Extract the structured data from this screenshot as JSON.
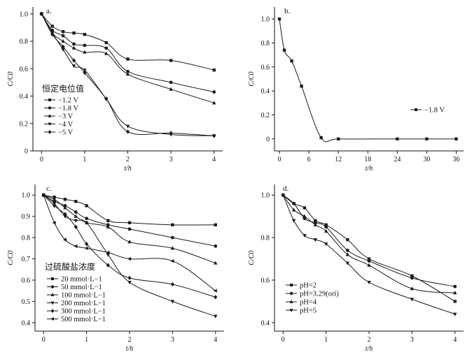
{
  "chart_data": [
    {
      "panel": "a.",
      "type": "line",
      "xlabel": "t/h",
      "ylabel": "C/C0",
      "xlim": [
        -0.2,
        4.2
      ],
      "ylim": [
        0,
        1.05
      ],
      "xticks": [
        0,
        1,
        2,
        3,
        4
      ],
      "yticks": [
        0,
        0.2,
        0.4,
        0.6,
        0.8,
        1.0
      ],
      "ytick_labels": [
        "0",
        "0.2",
        "0.4",
        "0.6",
        "0.8",
        "1.0"
      ],
      "legend_title": "恒定电位值",
      "series": [
        {
          "name": "−1.2 V",
          "marker": "square",
          "x": [
            0,
            0.25,
            0.5,
            0.75,
            1,
            1.5,
            2,
            3,
            4
          ],
          "y": [
            1.0,
            0.91,
            0.87,
            0.86,
            0.85,
            0.79,
            0.67,
            0.66,
            0.59
          ]
        },
        {
          "name": "−1.8 V",
          "marker": "circle",
          "x": [
            0,
            0.25,
            0.5,
            0.75,
            1,
            1.5,
            2,
            3,
            4
          ],
          "y": [
            1.0,
            0.88,
            0.84,
            0.78,
            0.77,
            0.75,
            0.58,
            0.5,
            0.43
          ]
        },
        {
          "name": "−3 V",
          "marker": "triangle-up",
          "x": [
            0,
            0.25,
            0.5,
            0.75,
            1,
            1.5,
            2,
            3,
            4
          ],
          "y": [
            1.0,
            0.86,
            0.8,
            0.75,
            0.72,
            0.71,
            0.56,
            0.45,
            0.35
          ]
        },
        {
          "name": "−4 V",
          "marker": "triangle-down",
          "x": [
            0,
            0.25,
            0.5,
            0.75,
            1,
            1.5,
            2,
            3,
            4
          ],
          "y": [
            1.0,
            0.86,
            0.74,
            0.62,
            0.59,
            0.38,
            0.18,
            0.12,
            0.11
          ]
        },
        {
          "name": "−5 V",
          "marker": "diamond",
          "x": [
            0,
            0.25,
            0.5,
            0.75,
            1,
            1.5,
            2,
            3,
            4
          ],
          "y": [
            1.0,
            0.85,
            0.76,
            0.66,
            0.57,
            0.38,
            0.14,
            0.13,
            0.11
          ]
        }
      ]
    },
    {
      "panel": "b.",
      "type": "line",
      "xlabel": "t/h",
      "ylabel": "C/C0",
      "xlim": [
        -1,
        37.5
      ],
      "ylim": [
        -0.1,
        1.1
      ],
      "xticks": [
        0,
        6,
        12,
        18,
        24,
        30,
        36
      ],
      "yticks": [
        0,
        0.2,
        0.4,
        0.6,
        0.8,
        1.0
      ],
      "ytick_labels": [
        "0",
        "0.2",
        "0.4",
        "0.6",
        "0.8",
        "1.0"
      ],
      "series": [
        {
          "name": "−1.8 V",
          "marker": "square",
          "x": [
            0,
            1,
            2.5,
            4.5,
            8.5,
            12,
            24,
            30,
            36
          ],
          "y": [
            1.0,
            0.74,
            0.65,
            0.44,
            0.01,
            0.0,
            0.0,
            0.0,
            0.0
          ]
        }
      ]
    },
    {
      "panel": "c.",
      "type": "line",
      "xlabel": "t/h",
      "ylabel": "C/C0",
      "xlim": [
        -0.2,
        4.2
      ],
      "ylim": [
        0.36,
        1.05
      ],
      "xticks": [
        0,
        1,
        2,
        3,
        4
      ],
      "yticks": [
        0.4,
        0.5,
        0.6,
        0.7,
        0.8,
        0.9,
        1.0
      ],
      "ytick_labels": [
        "0.4",
        "0.5",
        "0.6",
        "0.7",
        "0.8",
        "0.9",
        "1.0"
      ],
      "legend_title": "过硫酸盐浓度",
      "series": [
        {
          "name": "20 mmol·L−1",
          "marker": "square",
          "x": [
            0,
            0.25,
            0.5,
            0.75,
            1,
            1.5,
            2,
            3,
            4
          ],
          "y": [
            1.0,
            0.99,
            0.98,
            0.97,
            0.95,
            0.88,
            0.87,
            0.86,
            0.86
          ]
        },
        {
          "name": "50 mmol·L−1",
          "marker": "circle",
          "x": [
            0,
            0.25,
            0.5,
            0.75,
            1,
            1.5,
            2,
            3,
            4
          ],
          "y": [
            1.0,
            0.97,
            0.95,
            0.92,
            0.89,
            0.86,
            0.84,
            0.8,
            0.76
          ]
        },
        {
          "name": "100 mmol·L−1",
          "marker": "triangle-up",
          "x": [
            0,
            0.25,
            0.5,
            0.75,
            1,
            1.5,
            2,
            3,
            4
          ],
          "y": [
            1.0,
            0.98,
            0.94,
            0.9,
            0.87,
            0.85,
            0.78,
            0.75,
            0.68
          ]
        },
        {
          "name": "200 mmol·L−1",
          "marker": "triangle-down",
          "x": [
            0,
            0.25,
            0.5,
            0.75,
            1,
            1.5,
            2,
            3,
            4
          ],
          "y": [
            1.0,
            0.96,
            0.9,
            0.88,
            0.87,
            0.72,
            0.59,
            0.5,
            0.43
          ]
        },
        {
          "name": "300 mmol·L−1",
          "marker": "diamond",
          "x": [
            0,
            0.25,
            0.5,
            0.75,
            1,
            1.5,
            2,
            3,
            4
          ],
          "y": [
            1.0,
            0.95,
            0.91,
            0.85,
            0.77,
            0.67,
            0.61,
            0.58,
            0.52
          ]
        },
        {
          "name": "500 mmol·L−1",
          "marker": "triangle-left",
          "x": [
            0,
            0.25,
            0.5,
            0.75,
            1,
            1.5,
            2,
            3,
            4
          ],
          "y": [
            1.0,
            0.87,
            0.79,
            0.76,
            0.75,
            0.73,
            0.7,
            0.69,
            0.55
          ]
        }
      ]
    },
    {
      "panel": "d.",
      "type": "line",
      "xlabel": "t/h",
      "ylabel": "C/C0",
      "xlim": [
        -0.2,
        4.2
      ],
      "ylim": [
        0.36,
        1.05
      ],
      "xticks": [
        0,
        1,
        2,
        3,
        4
      ],
      "yticks": [
        0.4,
        0.6,
        0.8,
        1.0
      ],
      "ytick_labels": [
        "0.4",
        "0.6",
        "0.8",
        "1.0"
      ],
      "series": [
        {
          "name": "pH=2",
          "marker": "square",
          "x": [
            0,
            0.25,
            0.5,
            0.75,
            1,
            1.5,
            2,
            3,
            4
          ],
          "y": [
            1.0,
            0.96,
            0.94,
            0.88,
            0.86,
            0.79,
            0.7,
            0.62,
            0.5
          ]
        },
        {
          "name": "pH=3.29(ori)",
          "marker": "circle",
          "x": [
            0,
            0.25,
            0.5,
            0.75,
            1,
            1.5,
            2,
            3,
            4
          ],
          "y": [
            1.0,
            0.96,
            0.89,
            0.87,
            0.85,
            0.74,
            0.69,
            0.61,
            0.57
          ]
        },
        {
          "name": "pH=4",
          "marker": "triangle-up",
          "x": [
            0,
            0.25,
            0.5,
            0.75,
            1,
            1.5,
            2,
            3,
            4
          ],
          "y": [
            1.0,
            0.93,
            0.9,
            0.86,
            0.83,
            0.72,
            0.67,
            0.56,
            0.54
          ]
        },
        {
          "name": "pH=5",
          "marker": "triangle-down",
          "x": [
            0,
            0.25,
            0.5,
            0.75,
            1,
            1.5,
            2,
            3,
            4
          ],
          "y": [
            1.0,
            0.88,
            0.81,
            0.79,
            0.77,
            0.68,
            0.59,
            0.51,
            0.44
          ]
        }
      ]
    }
  ]
}
